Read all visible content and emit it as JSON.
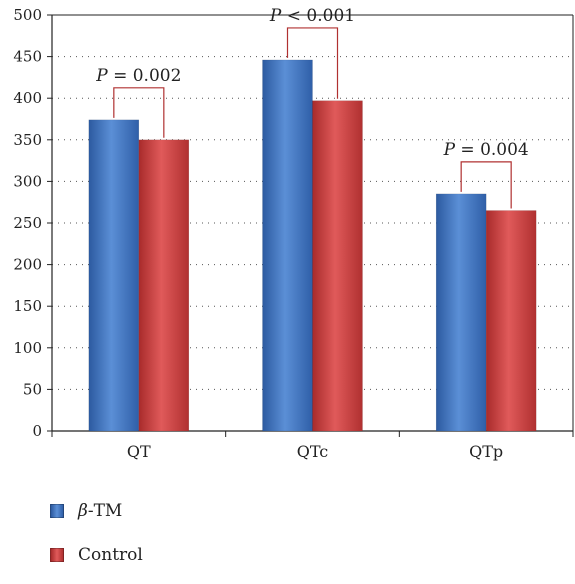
{
  "chart_data": {
    "type": "bar",
    "categories": [
      "QT",
      "QTc",
      "QTp"
    ],
    "series": [
      {
        "name": "β-TM",
        "values": [
          374,
          446,
          285
        ],
        "color": "#3a6fba"
      },
      {
        "name": "Control",
        "values": [
          350,
          397,
          265
        ],
        "color": "#c63b3b"
      }
    ],
    "ylim": [
      0,
      500
    ],
    "yticks": [
      0,
      50,
      100,
      150,
      200,
      250,
      300,
      350,
      400,
      450,
      500
    ],
    "grid": "dotted horizontal",
    "legend": "bottom-left",
    "annotations": [
      {
        "category": "QT",
        "italic": "P",
        "text": "= 0.002"
      },
      {
        "category": "QTc",
        "italic": "P",
        "text": "< 0.001"
      },
      {
        "category": "QTp",
        "italic": "P",
        "text": "= 0.004"
      }
    ],
    "bracket_color": "#b03030"
  },
  "legend": {
    "items": [
      {
        "italic": "β",
        "text": "-TM",
        "color": "#3a6fba"
      },
      {
        "italic": "",
        "text": "Control",
        "color": "#c63b3b"
      }
    ]
  }
}
